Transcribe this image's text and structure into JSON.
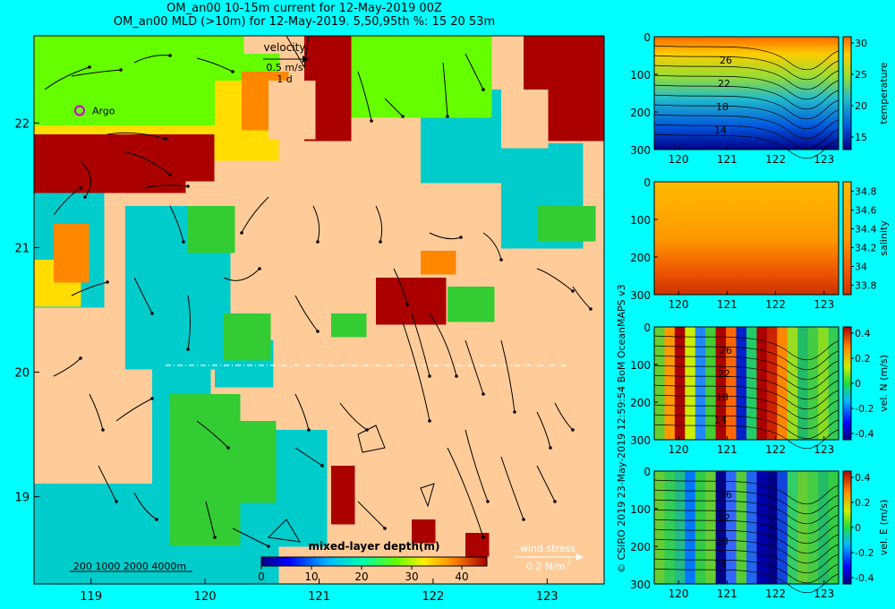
{
  "header": {
    "title_line1": "OM_an00 10-15m current for 12-May-2019 00Z",
    "title_line2": "OM_an00 MLD (>10m) for 12-May-2019. 5,50,95th %: 15  20  53m"
  },
  "credit": "© CSIRO 2019   23-May-2019 12:59:54 BoM OceanMAPS v3",
  "colors": {
    "background": "#00ffff",
    "land": "#ffcc99",
    "shallow_mld": "#00cccc",
    "mid_mld": "#33cc33",
    "bright_green": "#66ff00",
    "yellow": "#ffdd00",
    "orange": "#ff8800",
    "deep_mld": "#aa0000"
  },
  "chart_data": [
    {
      "type": "heatmap",
      "name_on_chart": "map",
      "x_ticks": [
        "119",
        "120",
        "121",
        "122",
        "123"
      ],
      "y_ticks": [
        "19",
        "20",
        "21",
        "22"
      ],
      "xlim": [
        118.5,
        123.5
      ],
      "ylim": [
        18.3,
        22.7
      ],
      "velocity_key": {
        "label": "velocity",
        "speed": "0.5 m/s",
        "duration": "1 d"
      },
      "argo_label": "Argo",
      "argo_position": [
        118.9,
        22.1
      ],
      "colorbar": {
        "label": "mixed-layer depth(m)",
        "ticks": [
          "0",
          "10",
          "20",
          "30",
          "40"
        ],
        "range": [
          0,
          45
        ]
      },
      "wind_key": {
        "label": "wind stress",
        "value": "0.2 N/m",
        "exponent": "2"
      },
      "bathymetry_key": "200 1000  2000  4000m"
    },
    {
      "type": "heatmap",
      "name_on_chart": "temperature section",
      "x_ticks": [
        "120",
        "121",
        "122",
        "123"
      ],
      "y_ticks": [
        "0",
        "100",
        "200",
        "300"
      ],
      "xlim": [
        119.5,
        123.3
      ],
      "ylim": [
        0,
        300
      ],
      "colorbar_label": "temperature",
      "colorbar_ticks": [
        "15",
        "20",
        "25",
        "30"
      ],
      "colorbar_range": [
        13,
        31
      ],
      "contour_labels": [
        "26",
        "22",
        "18",
        "14"
      ]
    },
    {
      "type": "heatmap",
      "name_on_chart": "salinity section",
      "x_ticks": [
        "120",
        "121",
        "122",
        "123"
      ],
      "y_ticks": [
        "0",
        "100",
        "200",
        "300"
      ],
      "xlim": [
        119.5,
        123.3
      ],
      "ylim": [
        0,
        300
      ],
      "colorbar_label": "salinity",
      "colorbar_ticks": [
        "33.8",
        "34",
        "34.2",
        "34.4",
        "34.6",
        "34.8"
      ],
      "colorbar_range": [
        33.7,
        34.9
      ]
    },
    {
      "type": "heatmap",
      "name_on_chart": "northward velocity section",
      "x_ticks": [
        "120",
        "121",
        "122",
        "123"
      ],
      "y_ticks": [
        "0",
        "100",
        "200",
        "300"
      ],
      "xlim": [
        119.5,
        123.3
      ],
      "ylim": [
        0,
        300
      ],
      "colorbar_label": "vel. N (m/s)",
      "colorbar_ticks": [
        "-0.4",
        "-0.2",
        "0",
        "0.2",
        "0.4"
      ],
      "colorbar_range": [
        -0.45,
        0.45
      ],
      "contour_labels": [
        "26",
        "22",
        "18",
        "14"
      ]
    },
    {
      "type": "heatmap",
      "name_on_chart": "eastward velocity section",
      "x_ticks": [
        "120",
        "121",
        "122",
        "123"
      ],
      "y_ticks": [
        "0",
        "100",
        "200",
        "300"
      ],
      "xlim": [
        119.5,
        123.3
      ],
      "ylim": [
        0,
        300
      ],
      "colorbar_label": "vel. E (m/s)",
      "colorbar_ticks": [
        "-0.4",
        "-0.2",
        "0",
        "0.2",
        "0.4"
      ],
      "colorbar_range": [
        -0.45,
        0.45
      ],
      "contour_labels": [
        "26",
        "22",
        "18",
        "14"
      ]
    }
  ]
}
